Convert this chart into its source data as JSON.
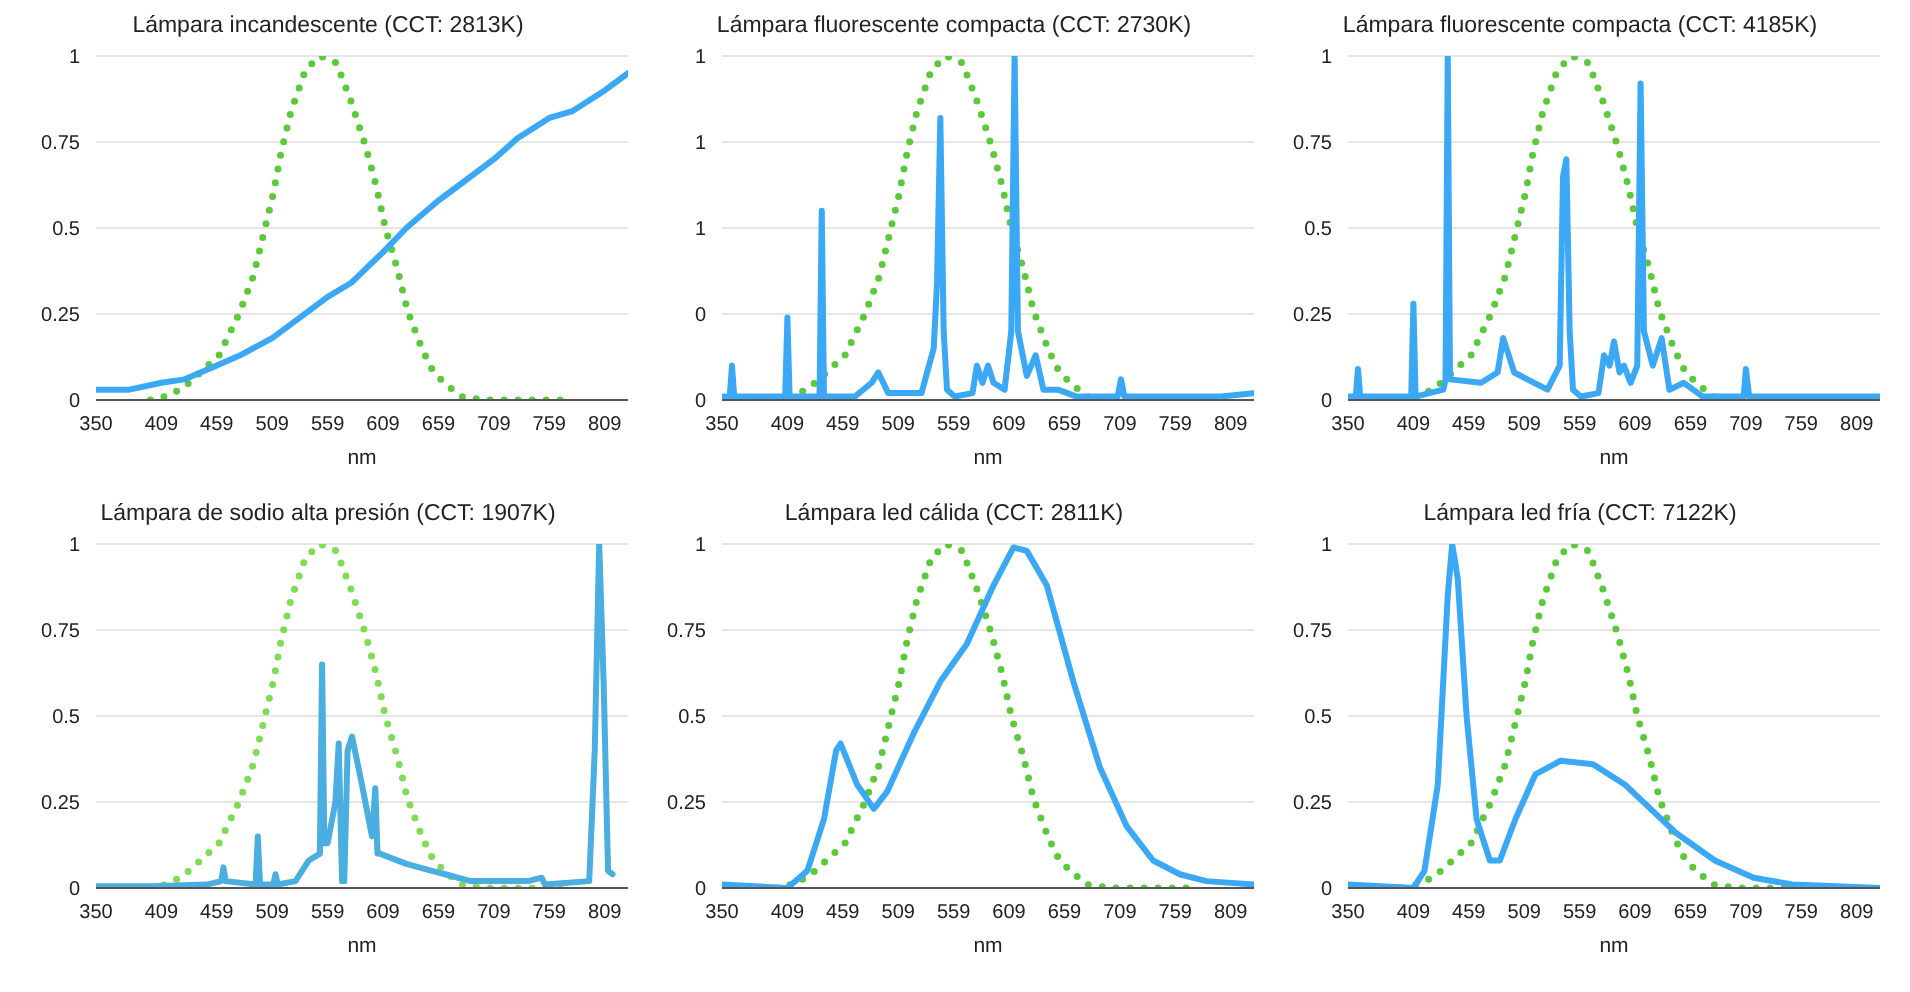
{
  "chart_data": [
    {
      "type": "line",
      "title": "Lámpara incandescente (CCT: 2813K)",
      "xlabel": "nm",
      "xlim": [
        350,
        830
      ],
      "xticks": [
        350,
        409,
        459,
        509,
        559,
        609,
        659,
        709,
        759,
        809
      ],
      "ylim": [
        0,
        1
      ],
      "yticks": [
        0,
        0.25,
        0.5,
        0.75,
        1
      ],
      "grid": "y",
      "series": [
        {
          "color": "#5cc93b",
          "line_style": "dotted",
          "x": [
            399,
            418,
            434,
            461,
            479,
            492,
            501,
            510,
            517,
            526,
            539,
            552,
            567,
            581,
            593,
            603,
            611,
            622,
            631,
            644,
            653,
            664,
            680,
            700,
            776
          ],
          "values": [
            0,
            0.015,
            0.05,
            0.13,
            0.25,
            0.36,
            0.48,
            0.6,
            0.72,
            0.84,
            0.96,
            1,
            0.98,
            0.86,
            0.74,
            0.62,
            0.5,
            0.38,
            0.26,
            0.15,
            0.09,
            0.05,
            0.01,
            0,
            0
          ]
        },
        {
          "color": "#3aa8f5",
          "line_style": "solid",
          "x": [
            350,
            380,
            409,
            430,
            459,
            480,
            509,
            530,
            559,
            580,
            609,
            630,
            659,
            680,
            709,
            730,
            759,
            780,
            809,
            830
          ],
          "values": [
            0.03,
            0.03,
            0.05,
            0.06,
            0.1,
            0.13,
            0.18,
            0.23,
            0.3,
            0.34,
            0.43,
            0.5,
            0.58,
            0.63,
            0.7,
            0.76,
            0.82,
            0.84,
            0.9,
            0.95
          ]
        }
      ]
    },
    {
      "type": "line",
      "title": "Lámpara fluorescente compacta (CCT: 2730K)",
      "xlabel": "nm",
      "xlim": [
        350,
        830
      ],
      "xticks": [
        350,
        409,
        459,
        509,
        559,
        609,
        659,
        709,
        759,
        809
      ],
      "ylim": [
        0,
        1
      ],
      "yticks": [
        0,
        {
          "value": 0.25,
          "label": "0"
        },
        {
          "value": 0.5,
          "label": "1"
        },
        {
          "value": 0.75,
          "label": "1"
        },
        1
      ],
      "grid": "y",
      "series": [
        {
          "color": "#5cc93b",
          "line_style": "dotted",
          "x": [
            399,
            418,
            434,
            461,
            479,
            492,
            501,
            510,
            517,
            526,
            539,
            552,
            567,
            581,
            593,
            603,
            611,
            622,
            631,
            644,
            653,
            664,
            680,
            700,
            776
          ],
          "values": [
            0,
            0.015,
            0.05,
            0.13,
            0.25,
            0.36,
            0.48,
            0.6,
            0.72,
            0.84,
            0.96,
            1,
            0.98,
            0.86,
            0.74,
            0.62,
            0.5,
            0.38,
            0.26,
            0.15,
            0.09,
            0.05,
            0.01,
            0,
            0
          ]
        },
        {
          "color": "#3aa8f5",
          "line_style": "solid",
          "x": [
            351,
            357,
            359,
            361,
            380,
            407,
            409,
            411,
            438,
            440,
            442,
            470,
            485,
            491,
            500,
            530,
            541,
            544,
            547,
            550,
            553,
            560,
            576,
            580,
            585,
            590,
            595,
            605,
            611,
            614,
            617,
            625,
            633,
            640,
            653,
            670,
            707,
            710,
            713,
            740,
            800,
            830
          ],
          "values": [
            0.01,
            0.01,
            0.1,
            0.01,
            0.01,
            0.01,
            0.24,
            0.01,
            0.01,
            0.55,
            0.01,
            0.01,
            0.05,
            0.08,
            0.02,
            0.02,
            0.15,
            0.34,
            0.82,
            0.2,
            0.03,
            0.01,
            0.02,
            0.1,
            0.05,
            0.1,
            0.05,
            0.03,
            0.2,
            1,
            0.2,
            0.07,
            0.13,
            0.03,
            0.03,
            0.01,
            0.01,
            0.06,
            0.01,
            0.01,
            0.01,
            0.02
          ]
        }
      ]
    },
    {
      "type": "line",
      "title": "Lámpara fluorescente compacta (CCT: 4185K)",
      "xlabel": "nm",
      "xlim": [
        350,
        830
      ],
      "xticks": [
        350,
        409,
        459,
        509,
        559,
        609,
        659,
        709,
        759,
        809
      ],
      "ylim": [
        0,
        1
      ],
      "yticks": [
        0,
        0.25,
        0.5,
        0.75,
        1
      ],
      "grid": "y",
      "series": [
        {
          "color": "#5cc93b",
          "line_style": "dotted",
          "x": [
            399,
            418,
            434,
            461,
            479,
            492,
            501,
            510,
            517,
            526,
            539,
            552,
            567,
            581,
            593,
            603,
            611,
            622,
            631,
            644,
            653,
            664,
            680,
            700,
            776
          ],
          "values": [
            0,
            0.015,
            0.05,
            0.13,
            0.25,
            0.36,
            0.48,
            0.6,
            0.72,
            0.84,
            0.96,
            1,
            0.98,
            0.86,
            0.74,
            0.62,
            0.5,
            0.38,
            0.26,
            0.15,
            0.09,
            0.05,
            0.01,
            0,
            0
          ]
        },
        {
          "color": "#3aa8f5",
          "line_style": "solid",
          "x": [
            351,
            357,
            359,
            361,
            380,
            407,
            409,
            411,
            436,
            438,
            440,
            442,
            470,
            485,
            490,
            500,
            530,
            541,
            544,
            547,
            550,
            553,
            560,
            576,
            581,
            586,
            590,
            595,
            599,
            605,
            611,
            614,
            617,
            625,
            633,
            640,
            653,
            670,
            707,
            709,
            712,
            740,
            800,
            830
          ],
          "values": [
            0.01,
            0.01,
            0.09,
            0.01,
            0.01,
            0.01,
            0.28,
            0.01,
            0.03,
            0.06,
            1,
            0.06,
            0.05,
            0.08,
            0.18,
            0.08,
            0.03,
            0.1,
            0.65,
            0.7,
            0.2,
            0.03,
            0.01,
            0.02,
            0.13,
            0.1,
            0.17,
            0.08,
            0.1,
            0.05,
            0.1,
            0.92,
            0.2,
            0.1,
            0.18,
            0.03,
            0.05,
            0.01,
            0.01,
            0.09,
            0.01,
            0.01,
            0.01,
            0.01
          ]
        }
      ]
    },
    {
      "type": "line",
      "title": "Lámpara de sodio alta presión (CCT: 1907K)",
      "xlabel": "nm",
      "xlim": [
        350,
        830
      ],
      "xticks": [
        350,
        409,
        459,
        509,
        559,
        609,
        659,
        709,
        759,
        809
      ],
      "ylim": [
        0,
        1
      ],
      "yticks": [
        0,
        0.25,
        0.5,
        0.75,
        1
      ],
      "grid": "y",
      "series": [
        {
          "color": "#7fdc55",
          "line_style": "dotted",
          "x": [
            399,
            418,
            434,
            461,
            479,
            492,
            501,
            510,
            517,
            526,
            539,
            552,
            567,
            581,
            593,
            603,
            611,
            622,
            631,
            644,
            653,
            664,
            680,
            700,
            776
          ],
          "values": [
            0,
            0.015,
            0.05,
            0.13,
            0.25,
            0.36,
            0.48,
            0.6,
            0.72,
            0.84,
            0.96,
            1,
            0.98,
            0.86,
            0.74,
            0.62,
            0.5,
            0.38,
            0.26,
            0.15,
            0.09,
            0.05,
            0.01,
            0,
            0
          ]
        },
        {
          "color": "#4aaee0",
          "line_style": "solid",
          "x": [
            350,
            400,
            450,
            463,
            465,
            467,
            494,
            496,
            498,
            510,
            512,
            514,
            530,
            542,
            552,
            554,
            556,
            559,
            566,
            569,
            572,
            574,
            577,
            581,
            590,
            599,
            602,
            604,
            606,
            630,
            653,
            665,
            688,
            740,
            752,
            755,
            795,
            800,
            804,
            808,
            812,
            816
          ],
          "values": [
            0.005,
            0.005,
            0.01,
            0.02,
            0.06,
            0.02,
            0.01,
            0.15,
            0.01,
            0.01,
            0.04,
            0.01,
            0.02,
            0.08,
            0.1,
            0.65,
            0.13,
            0.13,
            0.25,
            0.42,
            0.02,
            0.02,
            0.4,
            0.44,
            0.3,
            0.15,
            0.29,
            0.1,
            0.1,
            0.07,
            0.05,
            0.04,
            0.02,
            0.02,
            0.03,
            0.01,
            0.02,
            0.4,
            1,
            0.6,
            0.05,
            0.04
          ]
        }
      ]
    },
    {
      "type": "line",
      "title": "Lámpara led cálida (CCT: 2811K)",
      "xlabel": "nm",
      "xlim": [
        350,
        830
      ],
      "xticks": [
        350,
        409,
        459,
        509,
        559,
        609,
        659,
        709,
        759,
        809
      ],
      "ylim": [
        0,
        1
      ],
      "yticks": [
        0,
        0.25,
        0.5,
        0.75,
        1
      ],
      "grid": "y",
      "series": [
        {
          "color": "#5cc93b",
          "line_style": "dotted",
          "x": [
            399,
            418,
            434,
            461,
            479,
            492,
            501,
            510,
            517,
            526,
            539,
            552,
            567,
            581,
            593,
            603,
            611,
            622,
            631,
            644,
            653,
            664,
            680,
            700,
            776
          ],
          "values": [
            0,
            0.015,
            0.05,
            0.13,
            0.25,
            0.36,
            0.48,
            0.6,
            0.72,
            0.84,
            0.96,
            1,
            0.98,
            0.86,
            0.74,
            0.62,
            0.5,
            0.38,
            0.26,
            0.15,
            0.09,
            0.05,
            0.01,
            0,
            0
          ]
        },
        {
          "color": "#3aa8f5",
          "line_style": "solid",
          "x": [
            350,
            409,
            427,
            442,
            453,
            457,
            472,
            487,
            499,
            523,
            547,
            571,
            595,
            613,
            625,
            643,
            667,
            691,
            715,
            739,
            763,
            787,
            830
          ],
          "values": [
            0.01,
            0,
            0.05,
            0.2,
            0.4,
            0.42,
            0.3,
            0.23,
            0.28,
            0.45,
            0.6,
            0.71,
            0.88,
            0.99,
            0.98,
            0.88,
            0.6,
            0.35,
            0.18,
            0.08,
            0.04,
            0.02,
            0.01
          ]
        }
      ]
    },
    {
      "type": "line",
      "title": "Lámpara led fría (CCT: 7122K)",
      "xlabel": "nm",
      "xlim": [
        350,
        830
      ],
      "xticks": [
        350,
        409,
        459,
        509,
        559,
        609,
        659,
        709,
        759,
        809
      ],
      "ylim": [
        0,
        1
      ],
      "yticks": [
        0,
        0.25,
        0.5,
        0.75,
        1
      ],
      "grid": "y",
      "series": [
        {
          "color": "#5cc93b",
          "line_style": "dotted",
          "x": [
            399,
            418,
            434,
            461,
            479,
            492,
            501,
            510,
            517,
            526,
            539,
            552,
            567,
            581,
            593,
            603,
            611,
            622,
            631,
            644,
            653,
            664,
            680,
            700,
            776
          ],
          "values": [
            0,
            0.015,
            0.05,
            0.13,
            0.25,
            0.36,
            0.48,
            0.6,
            0.72,
            0.84,
            0.96,
            1,
            0.98,
            0.86,
            0.74,
            0.62,
            0.5,
            0.38,
            0.26,
            0.15,
            0.09,
            0.05,
            0.01,
            0,
            0
          ]
        },
        {
          "color": "#3aa8f5",
          "line_style": "solid",
          "x": [
            350,
            409,
            419,
            431,
            440,
            444,
            449,
            457,
            466,
            478,
            487,
            501,
            519,
            542,
            571,
            600,
            623,
            646,
            681,
            716,
            751,
            830
          ],
          "values": [
            0.01,
            0,
            0.05,
            0.3,
            0.85,
            1,
            0.9,
            0.5,
            0.2,
            0.08,
            0.08,
            0.2,
            0.33,
            0.37,
            0.36,
            0.3,
            0.23,
            0.16,
            0.08,
            0.03,
            0.01,
            0
          ]
        }
      ]
    }
  ]
}
